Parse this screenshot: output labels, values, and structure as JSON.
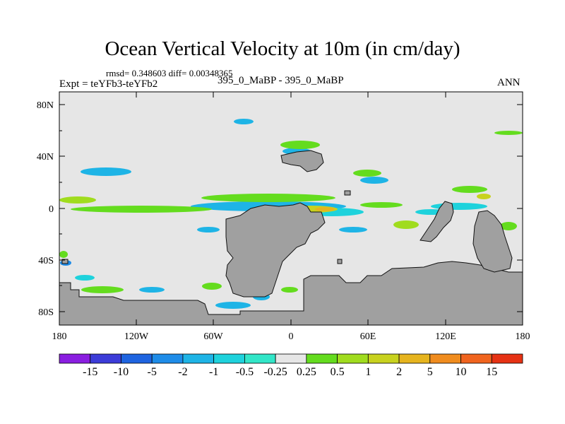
{
  "title": "Ocean Vertical Velocity at 10m (in cm/day)",
  "stats": "rmsd= 0.348603 diff= 0.00348365",
  "expt_label": "Expt = teYFb3-teYFb2",
  "center_label": "395_0_MaBP - 395_0_MaBP",
  "season_label": "ANN",
  "y_axis_labels": [
    "80N",
    "40N",
    "0",
    "40S",
    "80S"
  ],
  "x_axis_labels": [
    "180",
    "120W",
    "60W",
    "0",
    "60E",
    "120E",
    "180"
  ],
  "colorbar": {
    "labels": [
      "-15",
      "-10",
      "-5",
      "-2",
      "-1",
      "-0.5",
      "-0.25",
      "0.25",
      "0.5",
      "1",
      "2",
      "5",
      "10",
      "15"
    ],
    "colors": [
      "#8a1ee0",
      "#3c3cd8",
      "#1e64e0",
      "#1e8ce8",
      "#1eb4e6",
      "#1ed2dc",
      "#32e6c8",
      "#e6e6e6",
      "#64dc1e",
      "#a0dc1e",
      "#c8d21e",
      "#e6b41e",
      "#f08c1e",
      "#f0641e",
      "#e63214"
    ]
  },
  "colors": {
    "background_field": "#e6e6e6",
    "land": "#a0a0a0",
    "coast": "#111111"
  }
}
